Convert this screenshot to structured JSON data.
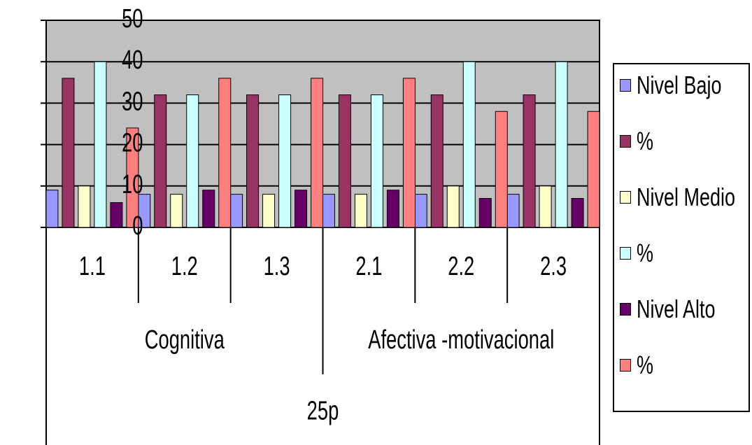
{
  "chart_data": {
    "type": "bar",
    "y_ticks": [
      "0",
      "10",
      "20",
      "30",
      "40",
      "50"
    ],
    "ylim": [
      0,
      50
    ],
    "grid": true,
    "plot_background": "#c0c0c0",
    "categories": [
      "1.1",
      "1.2",
      "1.3",
      "2.1",
      "2.2",
      "2.3"
    ],
    "groups": [
      {
        "label": "Cognitiva",
        "span": 3
      },
      {
        "label": "Afectiva -motivacional",
        "span": 3
      }
    ],
    "supergroup": {
      "label": "25p"
    },
    "legend_position": "right",
    "series": [
      {
        "name": "Nivel Bajo",
        "color": "#9999ff",
        "values": [
          9,
          8,
          8,
          8,
          8,
          8
        ]
      },
      {
        "name": "%",
        "color": "#993366",
        "values": [
          36,
          32,
          32,
          32,
          32,
          32
        ]
      },
      {
        "name": "Nivel Medio",
        "color": "#ffffcc",
        "values": [
          10,
          8,
          8,
          8,
          10,
          10
        ]
      },
      {
        "name": "%",
        "color": "#ccffff",
        "values": [
          40,
          32,
          32,
          32,
          40,
          40
        ]
      },
      {
        "name": "Nivel Alto",
        "color": "#660066",
        "values": [
          6,
          9,
          9,
          9,
          7,
          7
        ]
      },
      {
        "name": "%",
        "color": "#ff8080",
        "values": [
          24,
          36,
          36,
          36,
          28,
          28
        ]
      }
    ]
  }
}
